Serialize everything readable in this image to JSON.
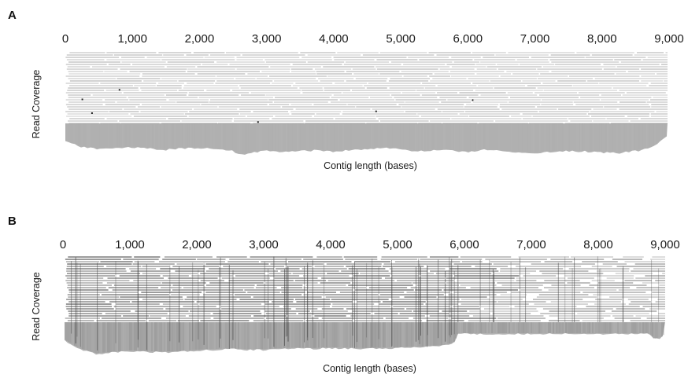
{
  "chart_data": [
    {
      "panel_label": "A",
      "type": "area",
      "xlabel": "Contig length (bases)",
      "ylabel": "Read Coverage",
      "x_ticks": [
        "0",
        "1,000",
        "2,000",
        "3,000",
        "4,000",
        "5,000",
        "6,000",
        "7,000",
        "8,000",
        "9,000"
      ],
      "xlim": [
        0,
        9000
      ],
      "contig_end": 9000,
      "x": [
        0,
        250,
        500,
        750,
        1000,
        1250,
        1500,
        1750,
        2000,
        2250,
        2500,
        2600,
        2700,
        2850,
        3000,
        3250,
        3500,
        3750,
        4000,
        4250,
        4500,
        4750,
        5000,
        5250,
        5500,
        5750,
        6000,
        6250,
        6500,
        6750,
        7000,
        7250,
        7500,
        7750,
        8000,
        8250,
        8500,
        8750,
        9000
      ],
      "coverage": [
        0.55,
        0.72,
        0.78,
        0.75,
        0.73,
        0.77,
        0.8,
        0.76,
        0.74,
        0.78,
        0.84,
        0.97,
        0.93,
        0.86,
        0.84,
        0.87,
        0.84,
        0.82,
        0.85,
        0.82,
        0.77,
        0.75,
        0.78,
        0.85,
        0.82,
        0.83,
        0.86,
        0.8,
        0.84,
        0.89,
        0.9,
        0.87,
        0.84,
        0.85,
        0.88,
        0.9,
        0.84,
        0.74,
        0.35
      ],
      "coverage_scale": "relative (0–1), no printed y ticks"
    },
    {
      "panel_label": "B",
      "type": "area",
      "xlabel": "Contig length (bases)",
      "ylabel": "Read Coverage",
      "x_ticks": [
        "0",
        "1,000",
        "2,000",
        "3,000",
        "4,000",
        "5,000",
        "6,000",
        "7,000",
        "8,000",
        "9,000"
      ],
      "xlim": [
        0,
        9000
      ],
      "contig_end": 9000,
      "x": [
        0,
        250,
        500,
        750,
        1000,
        1250,
        1500,
        1750,
        2000,
        2250,
        2500,
        2750,
        3000,
        3250,
        3500,
        3750,
        4000,
        4250,
        4500,
        4750,
        5000,
        5250,
        5500,
        5700,
        5850,
        5900,
        6250,
        6500,
        6750,
        7000,
        7250,
        7500,
        7750,
        8000,
        8250,
        8500,
        8750,
        8850,
        8950,
        9000
      ],
      "coverage": [
        0.5,
        0.78,
        0.92,
        0.88,
        0.84,
        0.86,
        0.87,
        0.86,
        0.82,
        0.8,
        0.78,
        0.8,
        0.8,
        0.77,
        0.76,
        0.77,
        0.75,
        0.76,
        0.77,
        0.76,
        0.75,
        0.73,
        0.72,
        0.68,
        0.6,
        0.34,
        0.34,
        0.34,
        0.34,
        0.34,
        0.34,
        0.34,
        0.34,
        0.34,
        0.34,
        0.34,
        0.34,
        0.5,
        0.45,
        0.34
      ],
      "coverage_scale": "relative (0–1), no printed y ticks"
    }
  ],
  "colors": {
    "reads": "#9a9a9a",
    "reads_dark": "#555555",
    "coverage_fill": "#b3b3b3",
    "background": "#ffffff"
  }
}
